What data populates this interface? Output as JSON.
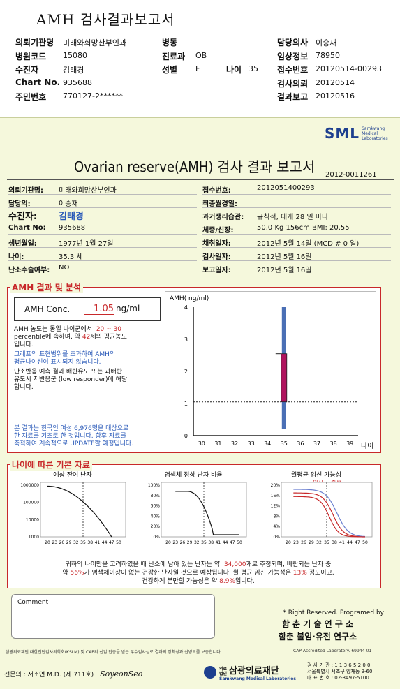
{
  "header": {
    "title": "AMH 검사결과보고서",
    "rows": [
      [
        {
          "l": "의뢰기관명",
          "v": "미래와희망산부인과"
        },
        {
          "l": "병동",
          "v": ""
        },
        {
          "l": "담당의사",
          "v": "이승재"
        }
      ],
      [
        {
          "l": "병원코드",
          "v": "15080"
        },
        {
          "l": "진료과",
          "v": "OB"
        },
        {
          "l": "임상정보",
          "v": "78950"
        }
      ],
      [
        {
          "l": "수진자",
          "v": "김태경"
        },
        {
          "l": "성별",
          "v": "F"
        },
        {
          "l": "접수번호",
          "v": "20120514-00293"
        }
      ],
      [
        {
          "l": "Chart No.",
          "v": "935688"
        },
        {
          "l": "",
          "v": ""
        },
        {
          "l": "검사의뢰",
          "v": "20120514"
        }
      ],
      [
        {
          "l": "주민번호",
          "v": "770127-2******"
        },
        {
          "l": "",
          "v": ""
        },
        {
          "l": "결과보고",
          "v": "20120516"
        }
      ]
    ],
    "age_label": "나이",
    "age_value": "35"
  },
  "logo": {
    "text": "SML",
    "sub1": "Samkwang",
    "sub2": "Medical",
    "sub3": "Laboratories"
  },
  "report": {
    "title": "Ovarian reserve(AMH) 검사 결과 보고서",
    "number": "2012-0011261",
    "left_fields": [
      {
        "l": "의뢰기관명:",
        "v": "미래와희망산부인과"
      },
      {
        "l": "담당의:",
        "v": "이승재"
      },
      {
        "l": "수진자:",
        "v": "김태경"
      },
      {
        "l": "Chart No:",
        "v": "935688"
      },
      {
        "l": "생년월일:",
        "v": "1977년 1월 27일"
      },
      {
        "l": "나이:",
        "v": "35.3 세"
      },
      {
        "l": "난소수술여부:",
        "v": "NO"
      }
    ],
    "right_fields": [
      {
        "l": "접수번호:",
        "v": "2012051400293"
      },
      {
        "l": "최종월경일:",
        "v": ""
      },
      {
        "l": "과거생리습관:",
        "v": "규칙적, 대개  28 일 마다"
      },
      {
        "l": "체중/신장:",
        "v": "50.0 Kg   156cm   BMI: 20.55"
      },
      {
        "l": "채취일자:",
        "v": "2012년 5월 14일   (MCD # 0 일)"
      },
      {
        "l": "검사일자:",
        "v": "2012년 5월 16일"
      },
      {
        "l": "보고일자:",
        "v": "2012년 5월 16일"
      }
    ]
  },
  "amh_section": {
    "title": "AMH 결과 및 분석",
    "conc_label": "AMH Conc.",
    "conc_value": "1.05",
    "conc_unit": "ng/ml",
    "p1a": "AMH 농도는 동일 나이군에서",
    "p1_range": "20 ~  30",
    "p1b": "percentile에 속하며, 약",
    "p1_age": "42",
    "p1c": "세의 평균농도",
    "p1d": "입니다.",
    "p2a": "그래프의 표현범위를 초과하여 AMH의",
    "p2b": "평균나이선이 표시되지 않습니다.",
    "p3a": "난소반응 예측 결과 배란유도 또는 과배란",
    "p3b": "유도시 저반응군 (low responder)에 해당",
    "p3c": "합니다.",
    "p4a": "본 결과는 한국인 여성 6,976명을 대상으로",
    "p4b": "한 자료를 기초로 한 것입니다. 향후 자료를",
    "p4c": "축적하여 계속적으로 UPDATE할 예정입니다."
  },
  "chart_data": [
    {
      "type": "bar",
      "ylabel": "AMH( ng/ml)",
      "xlabel": "나이",
      "x_ticks": [
        30,
        31,
        32,
        33,
        34,
        35,
        36,
        37,
        38,
        39
      ],
      "y_ticks": [
        0,
        1,
        2,
        3,
        4
      ],
      "ylim": [
        0,
        4
      ],
      "range_bar": {
        "x": 35,
        "low": 0.2,
        "high": 4.0
      },
      "iqr_box": {
        "x": 35,
        "low": 1.05,
        "high": 2.55
      },
      "reference_line": 1.05
    },
    {
      "type": "line",
      "title": "예상 잔여 난자",
      "y_ticks": [
        "1000000",
        "100000",
        "10000",
        "1000"
      ],
      "x_ticks": [
        "20",
        "23",
        "26",
        "29",
        "32",
        "35",
        "38",
        "41",
        "44",
        "47",
        "50"
      ],
      "marker_x": 35
    },
    {
      "type": "line",
      "title": "염색체 정상 난자 비율",
      "y_ticks": [
        "100%",
        "80%",
        "60%",
        "40%",
        "20%",
        "0%"
      ],
      "x_ticks": [
        "20",
        "23",
        "26",
        "29",
        "32",
        "35",
        "38",
        "41",
        "44",
        "47",
        "50"
      ],
      "marker_x": 35
    },
    {
      "type": "line",
      "title": "월평균 임신 가능성",
      "legend": "--: 임신--: 출산",
      "y_ticks": [
        "20%",
        "16%",
        "12%",
        "8%",
        "4%",
        "0%"
      ],
      "x_ticks": [
        "20",
        "23",
        "26",
        "29",
        "32",
        "35",
        "38",
        "41",
        "44",
        "47",
        "50"
      ],
      "marker_x": 35
    }
  ],
  "basic_section": {
    "title": "나이에 따른 기본 자료",
    "s1a": "귀하의 나이만을 고려하였을 때 난소에 남아 있는 난자는 약",
    "s1_num": "34,000",
    "s1b": "개로 추정되며, 배란되는 난자 중",
    "s2a": "약",
    "s2_pct": "56%",
    "s2b": "가 염색체이상이 없는 건강한 난자일 것으로 예상됩니다. 월 평균 임신 가능성은",
    "s2_preg": "13%",
    "s2c": "정도이고,",
    "s3a": "건강하게 분만할 가능성은 약",
    "s3_pct": "8.9%",
    "s3b": "입니다."
  },
  "comment_label": "Comment",
  "rights": {
    "line1": "* Right Reserved. Programed by",
    "line2": "함 춘  기 술  연 구 소",
    "line3": "함춘 불임·유전 연구소"
  },
  "footer": {
    "cert": "삼광의료재단 대한진단검사의학회(KSLM) 및 CAP의 신임 인증을 받은 우수검사실로 결과의 정확성과 신빙도를 보증합니다.",
    "cap": "CAP Accredited Laboratory. 69944-01",
    "doctor": "전문의 : 서소연 M.D. (제 711호)",
    "signature": "SoyeonSeo",
    "org_pre": "의료법인",
    "org": "삼광의료재단",
    "org_en": "Samkwang Medical Laboratories",
    "code": "검 사 기 관 : 1 1 3 6 5 2 0 0",
    "addr": "서울특별시 서초구 양재동 9-60",
    "tel": "대 표 번 호 : 02-3497-5100"
  },
  "colors": {
    "accent": "#c8282a",
    "brand": "#1d3f8f",
    "bar": "#4a6fb5",
    "box": "#b0135e",
    "bg": "#f5f8dc"
  }
}
